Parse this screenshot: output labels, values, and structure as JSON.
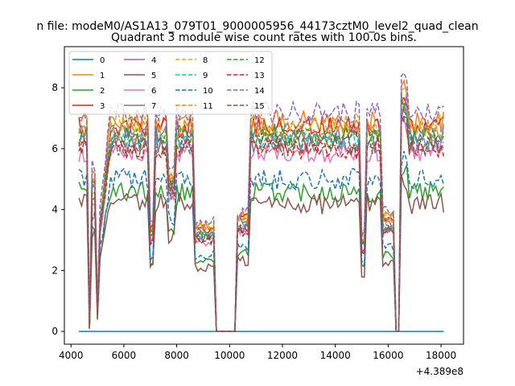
{
  "figure": {
    "suptitle": "n file: modeM0/AS1A13_079T01_9000005956_44173cztM0_level2_quad_clean",
    "title": "Quadrant 3 module wise count rates with 100.0s bins.",
    "offset_text": "+4.389e8"
  },
  "chart_data": {
    "type": "line",
    "title": "Quadrant 3 module wise count rates with 100.0s bins.",
    "xlabel": "",
    "ylabel": "",
    "x_offset": 438900000,
    "xlim": [
      3750,
      18850
    ],
    "ylim": [
      -0.42,
      9.35
    ],
    "xticks": [
      4000,
      6000,
      8000,
      10000,
      12000,
      14000,
      16000,
      18000
    ],
    "yticks": [
      0,
      2,
      4,
      6,
      8
    ],
    "grid": false,
    "legend": {
      "location": "upper-left",
      "columns": 4
    },
    "gaps": [
      [
        9500,
        10300
      ],
      [
        16250,
        16500
      ]
    ],
    "series": [
      {
        "name": "0",
        "color": "#1f77b4",
        "linestyle": "solid",
        "level": 0.0
      },
      {
        "name": "1",
        "color": "#ff7f0e",
        "linestyle": "solid",
        "level": 6.9
      },
      {
        "name": "2",
        "color": "#2ca02c",
        "linestyle": "solid",
        "level": 4.6
      },
      {
        "name": "3",
        "color": "#d62728",
        "linestyle": "solid",
        "level": 6.7
      },
      {
        "name": "4",
        "color": "#9467bd",
        "linestyle": "solid",
        "level": 6.5
      },
      {
        "name": "5",
        "color": "#8c564b",
        "linestyle": "solid",
        "level": 4.2
      },
      {
        "name": "6",
        "color": "#e377c2",
        "linestyle": "solid",
        "level": 5.9
      },
      {
        "name": "7",
        "color": "#7f7f7f",
        "linestyle": "solid",
        "level": 6.2
      },
      {
        "name": "8",
        "color": "#bcbd22",
        "linestyle": "dashed",
        "level": 6.8
      },
      {
        "name": "9",
        "color": "#17becf",
        "linestyle": "dashed",
        "level": 6.3
      },
      {
        "name": "10",
        "color": "#1f77b4",
        "linestyle": "dashed",
        "level": 5.0
      },
      {
        "name": "11",
        "color": "#ff7f0e",
        "linestyle": "dashed",
        "level": 6.6
      },
      {
        "name": "12",
        "color": "#2ca02c",
        "linestyle": "dashed",
        "level": 6.4
      },
      {
        "name": "13",
        "color": "#d62728",
        "linestyle": "dashed",
        "level": 6.0
      },
      {
        "name": "14",
        "color": "#9467bd",
        "linestyle": "dashed",
        "level": 7.2
      },
      {
        "name": "15",
        "color": "#8c564b",
        "linestyle": "dashed",
        "level": 6.1
      }
    ]
  }
}
